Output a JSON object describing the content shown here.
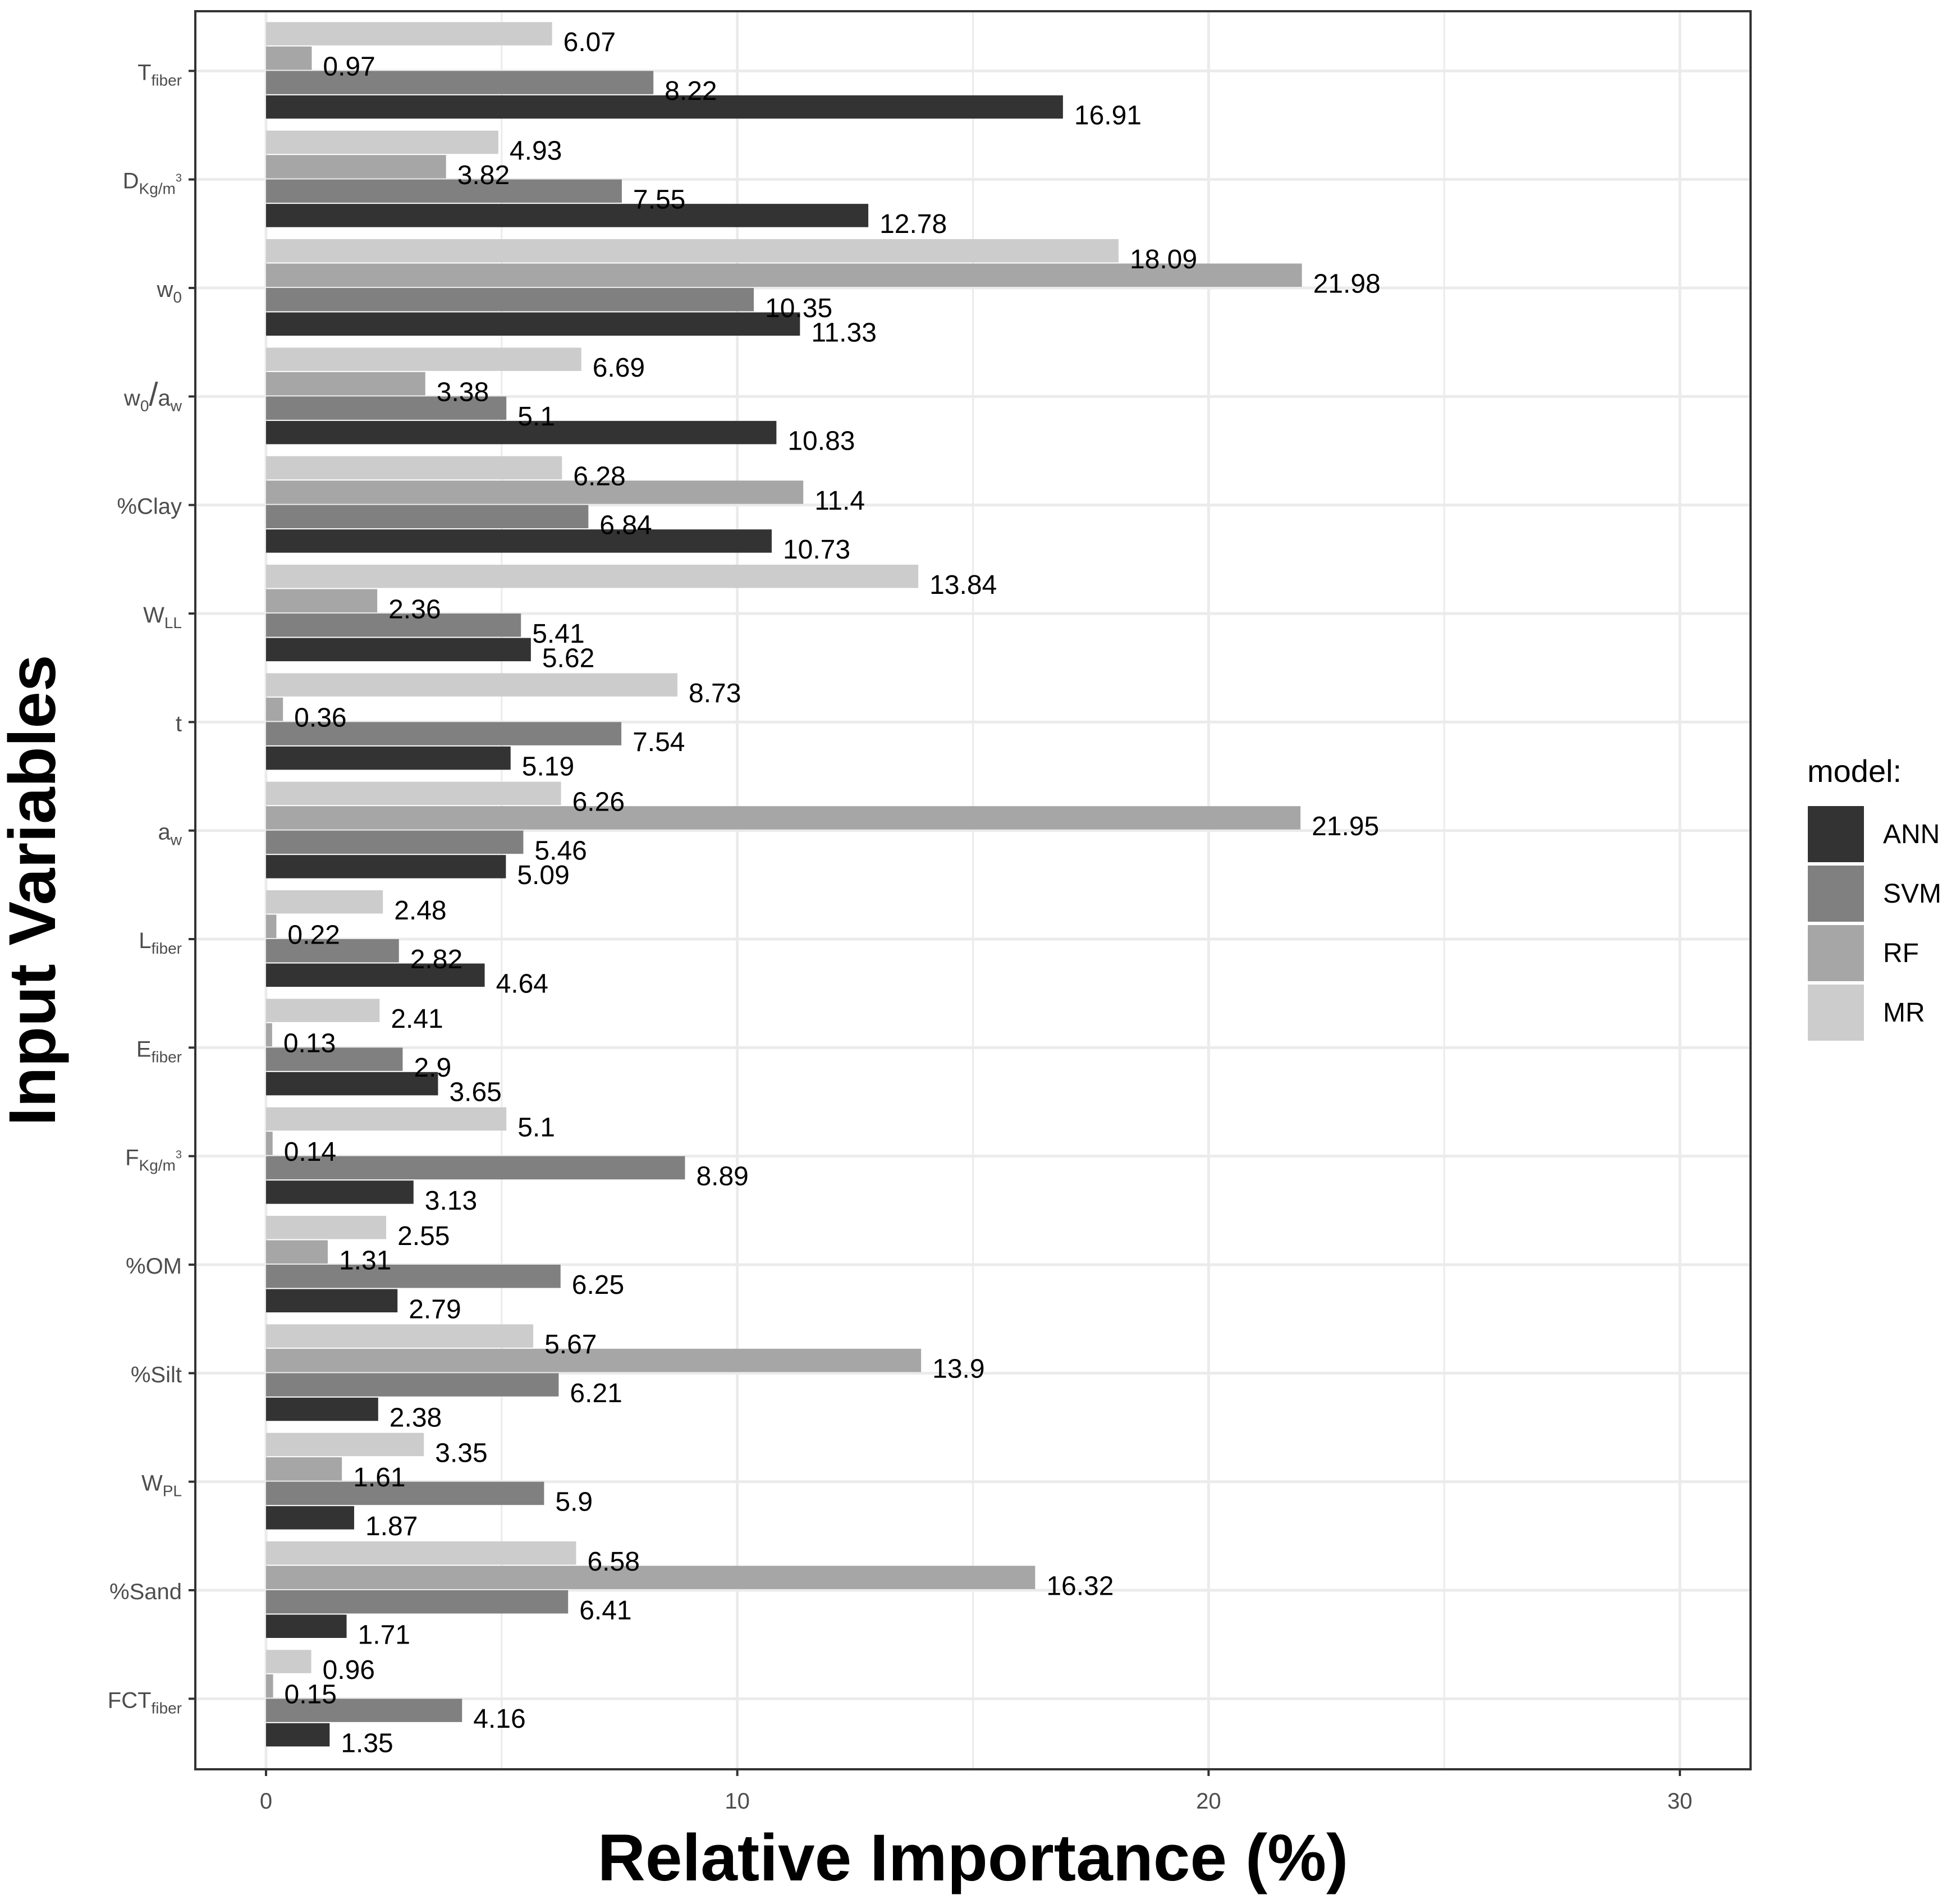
{
  "chart_data": {
    "type": "bar",
    "orientation": "horizontal",
    "xlabel": "Relative Importance  (%)",
    "ylabel": "Input Variables",
    "xlim": [
      -1.5,
      31.5
    ],
    "xticks": [
      0,
      10,
      20,
      30
    ],
    "grid": true,
    "legend": {
      "title": "model:",
      "position": "right",
      "entries": [
        {
          "name": "ANN",
          "color": "#333333"
        },
        {
          "name": "SVM",
          "color": "#808080"
        },
        {
          "name": "RF",
          "color": "#a6a6a6"
        },
        {
          "name": "MR",
          "color": "#cccccc"
        }
      ]
    },
    "categories": [
      {
        "base": "T",
        "sub": "fiber",
        "sup": ""
      },
      {
        "base": "D",
        "sub": "Kg/m",
        "sup": "3"
      },
      {
        "base": "w",
        "sub": "0",
        "sup": ""
      },
      {
        "base": "w0/aw",
        "sub": "",
        "sup": "",
        "rich": [
          [
            "w",
            ""
          ],
          [
            "0",
            "sub"
          ],
          [
            "/",
            "big"
          ],
          [
            "a",
            ""
          ],
          [
            "w",
            "sub"
          ]
        ]
      },
      {
        "base": "%Clay",
        "sub": "",
        "sup": ""
      },
      {
        "base": "W",
        "sub": "LL",
        "sup": ""
      },
      {
        "base": "t",
        "sub": "",
        "sup": ""
      },
      {
        "base": "a",
        "sub": "w",
        "sup": ""
      },
      {
        "base": "L",
        "sub": "fiber",
        "sup": ""
      },
      {
        "base": "E",
        "sub": "fiber",
        "sup": ""
      },
      {
        "base": "F",
        "sub": "Kg/m",
        "sup": "3"
      },
      {
        "base": "%OM",
        "sub": "",
        "sup": ""
      },
      {
        "base": "%Silt",
        "sub": "",
        "sup": ""
      },
      {
        "base": "W",
        "sub": "PL",
        "sup": ""
      },
      {
        "base": "%Sand",
        "sub": "",
        "sup": ""
      },
      {
        "base": "FCT",
        "sub": "fiber",
        "sup": ""
      }
    ],
    "series": [
      {
        "name": "MR",
        "values": [
          6.07,
          4.93,
          18.09,
          6.69,
          6.28,
          13.84,
          8.73,
          6.26,
          2.48,
          2.41,
          5.1,
          2.55,
          5.67,
          3.35,
          6.58,
          0.96
        ],
        "labels": [
          "6.07",
          "4.93",
          "18.09",
          "6.69",
          "6.28",
          "13.84",
          "8.73",
          "6.26",
          "2.48",
          "2.41",
          "5.1",
          "2.55",
          "5.67",
          "3.35",
          "6.58",
          "0.96"
        ]
      },
      {
        "name": "RF",
        "values": [
          0.97,
          3.82,
          21.98,
          3.38,
          11.4,
          2.36,
          0.36,
          21.95,
          0.22,
          0.13,
          0.14,
          1.31,
          13.9,
          1.61,
          16.32,
          0.15
        ],
        "labels": [
          "0.97",
          "3.82",
          "21.98",
          "3.38",
          "11.4",
          "2.36",
          "0.36",
          "21.95",
          "0.22",
          "0.13",
          "0.14",
          "1.31",
          "13.9",
          "1.61",
          "16.32",
          "0.15"
        ]
      },
      {
        "name": "SVM",
        "values": [
          8.22,
          7.55,
          10.35,
          5.1,
          6.84,
          5.41,
          7.54,
          5.46,
          2.82,
          2.9,
          8.89,
          6.25,
          6.21,
          5.9,
          6.41,
          4.16
        ],
        "labels": [
          "8.22",
          "7.55",
          "10.35",
          "5.1",
          "6.84",
          "5.41",
          "7.54",
          "5.46",
          "2.82",
          "2.9",
          "8.89",
          "6.25",
          "6.21",
          "5.9",
          "6.41",
          "4.16"
        ]
      },
      {
        "name": "ANN",
        "values": [
          16.91,
          12.78,
          11.33,
          10.83,
          10.73,
          5.62,
          5.19,
          5.09,
          4.64,
          3.65,
          3.13,
          2.79,
          2.38,
          1.87,
          1.71,
          1.35
        ],
        "labels": [
          "16.91",
          "12.78",
          "11.33",
          "10.83",
          "10.73",
          "5.62",
          "5.19",
          "5.09",
          "4.64",
          "3.65",
          "3.13",
          "2.79",
          "2.38",
          "1.87",
          "1.71",
          "1.35"
        ]
      }
    ]
  }
}
